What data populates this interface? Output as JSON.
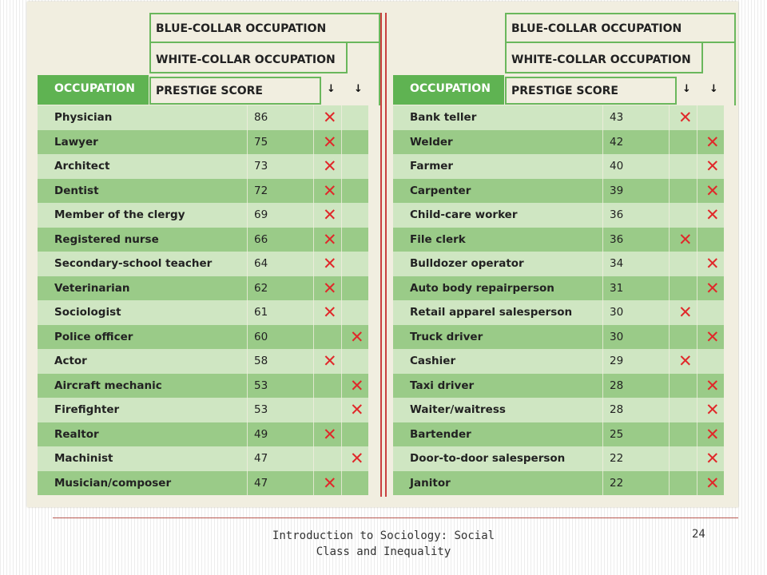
{
  "headers": {
    "blue_collar": "BLUE-COLLAR OCCUPATION",
    "white_collar": "WHITE-COLLAR OCCUPATION",
    "occupation": "OCCUPATION",
    "prestige": "PRESTIGE SCORE",
    "arrow": "↓"
  },
  "left_table": [
    {
      "occupation": "Physician",
      "score": "86",
      "collar": "white"
    },
    {
      "occupation": "Lawyer",
      "score": "75",
      "collar": "white"
    },
    {
      "occupation": "Architect",
      "score": "73",
      "collar": "white"
    },
    {
      "occupation": "Dentist",
      "score": "72",
      "collar": "white"
    },
    {
      "occupation": "Member of the clergy",
      "score": "69",
      "collar": "white"
    },
    {
      "occupation": "Registered nurse",
      "score": "66",
      "collar": "white"
    },
    {
      "occupation": "Secondary-school teacher",
      "score": "64",
      "collar": "white"
    },
    {
      "occupation": "Veterinarian",
      "score": "62",
      "collar": "white"
    },
    {
      "occupation": "Sociologist",
      "score": "61",
      "collar": "white"
    },
    {
      "occupation": "Police officer",
      "score": "60",
      "collar": "blue"
    },
    {
      "occupation": "Actor",
      "score": "58",
      "collar": "white"
    },
    {
      "occupation": "Aircraft mechanic",
      "score": "53",
      "collar": "blue"
    },
    {
      "occupation": "Firefighter",
      "score": "53",
      "collar": "blue"
    },
    {
      "occupation": "Realtor",
      "score": "49",
      "collar": "white"
    },
    {
      "occupation": "Machinist",
      "score": "47",
      "collar": "blue"
    },
    {
      "occupation": "Musician/composer",
      "score": "47",
      "collar": "white"
    }
  ],
  "right_table": [
    {
      "occupation": "Bank teller",
      "score": "43",
      "collar": "white"
    },
    {
      "occupation": "Welder",
      "score": "42",
      "collar": "blue"
    },
    {
      "occupation": "Farmer",
      "score": "40",
      "collar": "blue"
    },
    {
      "occupation": "Carpenter",
      "score": "39",
      "collar": "blue"
    },
    {
      "occupation": "Child-care worker",
      "score": "36",
      "collar": "blue"
    },
    {
      "occupation": "File clerk",
      "score": "36",
      "collar": "white"
    },
    {
      "occupation": "Bulldozer operator",
      "score": "34",
      "collar": "blue"
    },
    {
      "occupation": "Auto body repairperson",
      "score": "31",
      "collar": "blue"
    },
    {
      "occupation": "Retail apparel salesperson",
      "score": "30",
      "collar": "white"
    },
    {
      "occupation": "Truck driver",
      "score": "30",
      "collar": "blue"
    },
    {
      "occupation": "Cashier",
      "score": "29",
      "collar": "white"
    },
    {
      "occupation": "Taxi driver",
      "score": "28",
      "collar": "blue"
    },
    {
      "occupation": "Waiter/waitress",
      "score": "28",
      "collar": "blue"
    },
    {
      "occupation": "Bartender",
      "score": "25",
      "collar": "blue"
    },
    {
      "occupation": "Door-to-door salesperson",
      "score": "22",
      "collar": "blue"
    },
    {
      "occupation": "Janitor",
      "score": "22",
      "collar": "blue"
    }
  ],
  "mark_symbol": "✕",
  "colors": {
    "header_green": "#5fb352",
    "row_light": "#cfe6c2",
    "row_dark": "#9acb88",
    "mark_red": "#e0282a",
    "panel_bg": "#f1eee0"
  },
  "footer": {
    "title": "Introduction to Sociology: Social Class and Inequality",
    "page_number": "24"
  }
}
